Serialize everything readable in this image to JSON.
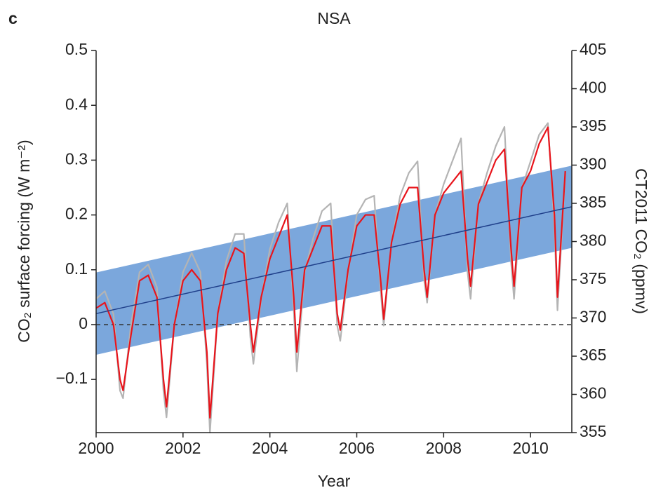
{
  "chart_data": {
    "type": "line",
    "panel_label": "c",
    "title": "NSA",
    "xlabel": "Year",
    "ylabel": "CO₂ surface forcing (W m⁻²)",
    "y2label": "CT2011 CO₂ (ppmv)",
    "xlim": [
      2000,
      2010.95
    ],
    "xticks": [
      2000,
      2002,
      2004,
      2006,
      2008,
      2010
    ],
    "ylim": [
      -0.197,
      0.5
    ],
    "yticks": [
      {
        "value": -0.1,
        "label": "−0.1"
      },
      0,
      0.1,
      0.2,
      0.3,
      0.4,
      0.5
    ],
    "y2lim": [
      355,
      405
    ],
    "y2ticks": [
      355,
      360,
      365,
      370,
      375,
      380,
      385,
      390,
      395,
      400,
      405
    ],
    "hline": 0,
    "band": {
      "color": "#7ba7dc",
      "x": [
        2000,
        2010.95
      ],
      "upper": [
        0.095,
        0.29
      ],
      "lower": [
        -0.055,
        0.14
      ]
    },
    "trend": {
      "color": "#1f3f8a",
      "x": [
        2000,
        2010.95
      ],
      "values": [
        0.02,
        0.215
      ]
    },
    "x": [
      2000,
      2000.2,
      2000.4,
      2000.55,
      2000.62,
      2000.8,
      2001,
      2001.2,
      2001.4,
      2001.55,
      2001.62,
      2001.8,
      2002,
      2002.2,
      2002.4,
      2002.55,
      2002.62,
      2002.8,
      2003,
      2003.2,
      2003.4,
      2003.55,
      2003.62,
      2003.8,
      2004,
      2004.2,
      2004.4,
      2004.55,
      2004.62,
      2004.8,
      2005,
      2005.2,
      2005.4,
      2005.55,
      2005.62,
      2005.8,
      2006,
      2006.2,
      2006.4,
      2006.55,
      2006.62,
      2006.8,
      2007,
      2007.2,
      2007.4,
      2007.55,
      2007.62,
      2007.8,
      2008,
      2008.2,
      2008.4,
      2008.55,
      2008.62,
      2008.8,
      2009,
      2009.2,
      2009.4,
      2009.55,
      2009.62,
      2009.8,
      2010,
      2010.2,
      2010.4,
      2010.55,
      2010.62,
      2010.8
    ],
    "series": [
      {
        "color": "#b4b4b4",
        "axis": "y2",
        "values": [
          372.5,
          373.5,
          370.5,
          360.5,
          359.5,
          369,
          376,
          377,
          374,
          360.5,
          357,
          369,
          376,
          378.5,
          376,
          364,
          355,
          370.5,
          377.5,
          381,
          381,
          367.5,
          364,
          372.5,
          379,
          382.5,
          385,
          371,
          363,
          376,
          380.5,
          384,
          385,
          369,
          367,
          376,
          383.5,
          385.5,
          386,
          373.5,
          369,
          380,
          386,
          389,
          390.5,
          375,
          372,
          383.5,
          387.5,
          390.5,
          393.5,
          376,
          372.5,
          385,
          389,
          392.5,
          395,
          377.5,
          372.5,
          387,
          390.5,
          394,
          395.5,
          382,
          371,
          389
        ]
      },
      {
        "color": "#e8141b",
        "values": [
          0.03,
          0.04,
          0,
          -0.1,
          -0.12,
          -0.02,
          0.08,
          0.09,
          0.05,
          -0.1,
          -0.15,
          0,
          0.08,
          0.1,
          0.08,
          -0.05,
          -0.17,
          0.02,
          0.1,
          0.14,
          0.13,
          0,
          -0.05,
          0.05,
          0.12,
          0.16,
          0.2,
          0.05,
          -0.05,
          0.1,
          0.14,
          0.18,
          0.18,
          0.02,
          -0.01,
          0.1,
          0.18,
          0.2,
          0.2,
          0.08,
          0.01,
          0.15,
          0.22,
          0.25,
          0.25,
          0.1,
          0.05,
          0.2,
          0.24,
          0.26,
          0.28,
          0.12,
          0.07,
          0.22,
          0.26,
          0.3,
          0.32,
          0.14,
          0.07,
          0.25,
          0.28,
          0.33,
          0.36,
          0.2,
          0.05,
          0.28
        ]
      }
    ]
  }
}
